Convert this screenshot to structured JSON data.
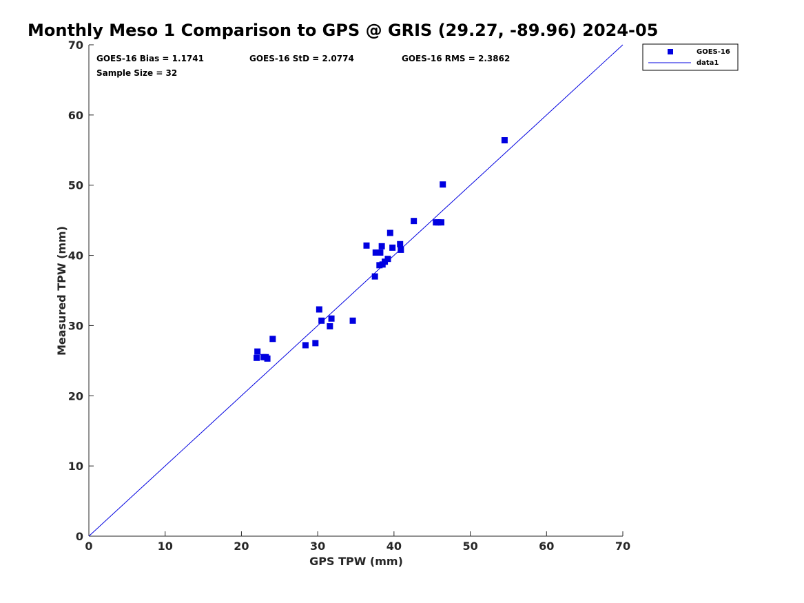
{
  "chart_data": {
    "type": "scatter",
    "title": "Monthly Meso 1 Comparison to GPS @ GRIS (29.27, -89.96) 2024-05",
    "xlabel": "GPS TPW (mm)",
    "ylabel": "Measured TPW (mm)",
    "xlim": [
      0,
      70
    ],
    "ylim": [
      0,
      70
    ],
    "xticks": [
      "0",
      "10",
      "20",
      "30",
      "40",
      "50",
      "60",
      "70"
    ],
    "yticks": [
      "0",
      "10",
      "20",
      "30",
      "40",
      "50",
      "60",
      "70"
    ],
    "grid": false,
    "legend_position": "outside-top-right",
    "stats": {
      "bias": "GOES-16 Bias = 1.1741",
      "std": "GOES-16 StD = 2.0774",
      "rms": "GOES-16 RMS = 2.3862",
      "sample_size": "Sample Size = 32"
    },
    "series": [
      {
        "name": "GOES-16",
        "marker": "square",
        "color": "#0000e0",
        "points": [
          [
            22.0,
            25.4
          ],
          [
            22.1,
            26.3
          ],
          [
            22.9,
            25.5
          ],
          [
            23.2,
            25.5
          ],
          [
            23.4,
            25.3
          ],
          [
            24.1,
            28.1
          ],
          [
            28.4,
            27.2
          ],
          [
            29.7,
            27.5
          ],
          [
            30.2,
            32.3
          ],
          [
            30.5,
            30.7
          ],
          [
            31.6,
            29.9
          ],
          [
            31.8,
            31.0
          ],
          [
            34.6,
            30.7
          ],
          [
            36.4,
            41.4
          ],
          [
            37.5,
            37.0
          ],
          [
            37.6,
            40.4
          ],
          [
            38.1,
            38.6
          ],
          [
            38.2,
            40.4
          ],
          [
            38.4,
            41.3
          ],
          [
            38.5,
            38.7
          ],
          [
            38.8,
            39.1
          ],
          [
            39.2,
            39.5
          ],
          [
            39.5,
            43.2
          ],
          [
            39.8,
            41.1
          ],
          [
            40.8,
            41.6
          ],
          [
            40.9,
            40.8
          ],
          [
            42.6,
            44.9
          ],
          [
            45.5,
            44.7
          ],
          [
            45.8,
            44.7
          ],
          [
            46.2,
            44.7
          ],
          [
            46.4,
            50.1
          ],
          [
            54.5,
            56.4
          ]
        ]
      },
      {
        "name": "data1",
        "type": "line",
        "color": "#0000e0",
        "points": [
          [
            0,
            0
          ],
          [
            70,
            70
          ]
        ]
      }
    ]
  }
}
